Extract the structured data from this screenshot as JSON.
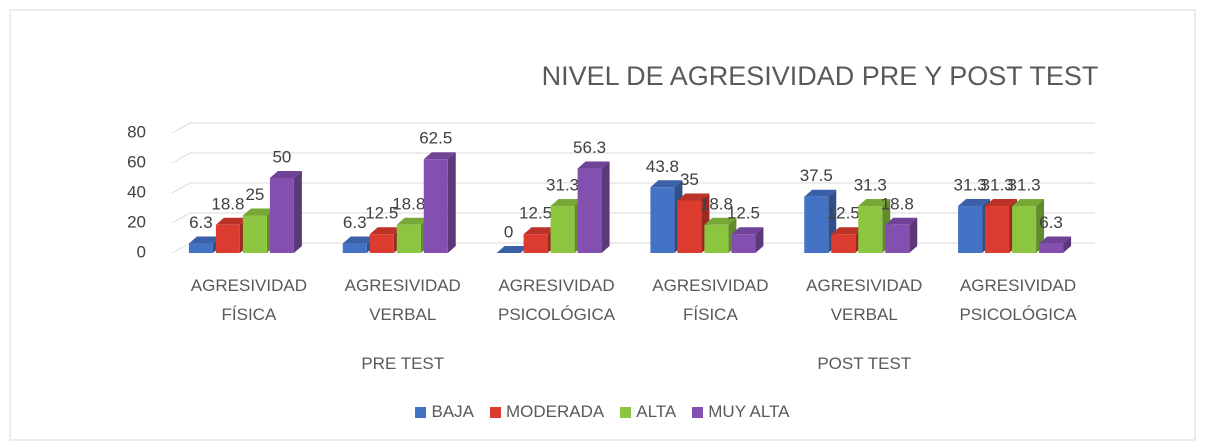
{
  "chart_data": {
    "type": "bar3d",
    "title": "NIVEL DE AGRESIVIDAD PRE Y POST TEST",
    "categories": [
      "AGRESIVIDAD FÍSICA",
      "AGRESIVIDAD VERBAL",
      "AGRESIVIDAD PSICOLÓGICA",
      "AGRESIVIDAD FÍSICA",
      "AGRESIVIDAD VERBAL",
      "AGRESIVIDAD PSICOLÓGICA"
    ],
    "groups": [
      {
        "name": "PRE TEST",
        "span": [
          0,
          2
        ]
      },
      {
        "name": "POST TEST",
        "span": [
          3,
          5
        ]
      }
    ],
    "series": [
      {
        "name": "BAJA",
        "color": "#4472c4",
        "values": [
          6.3,
          6.3,
          0,
          43.8,
          37.5,
          31.3
        ]
      },
      {
        "name": "MODERADA",
        "color": "#dc3b2f",
        "values": [
          18.8,
          12.5,
          12.5,
          35,
          12.5,
          31.3
        ]
      },
      {
        "name": "ALTA",
        "color": "#8cc640",
        "values": [
          25,
          18.8,
          31.3,
          18.8,
          31.3,
          31.3
        ]
      },
      {
        "name": "MUY ALTA",
        "color": "#8350b0",
        "values": [
          50,
          62.5,
          56.3,
          12.5,
          18.8,
          6.3
        ]
      }
    ],
    "ylim": [
      0,
      80
    ],
    "yticks": [
      0,
      20,
      40,
      60,
      80
    ],
    "grid": true,
    "legend": "bottom"
  }
}
